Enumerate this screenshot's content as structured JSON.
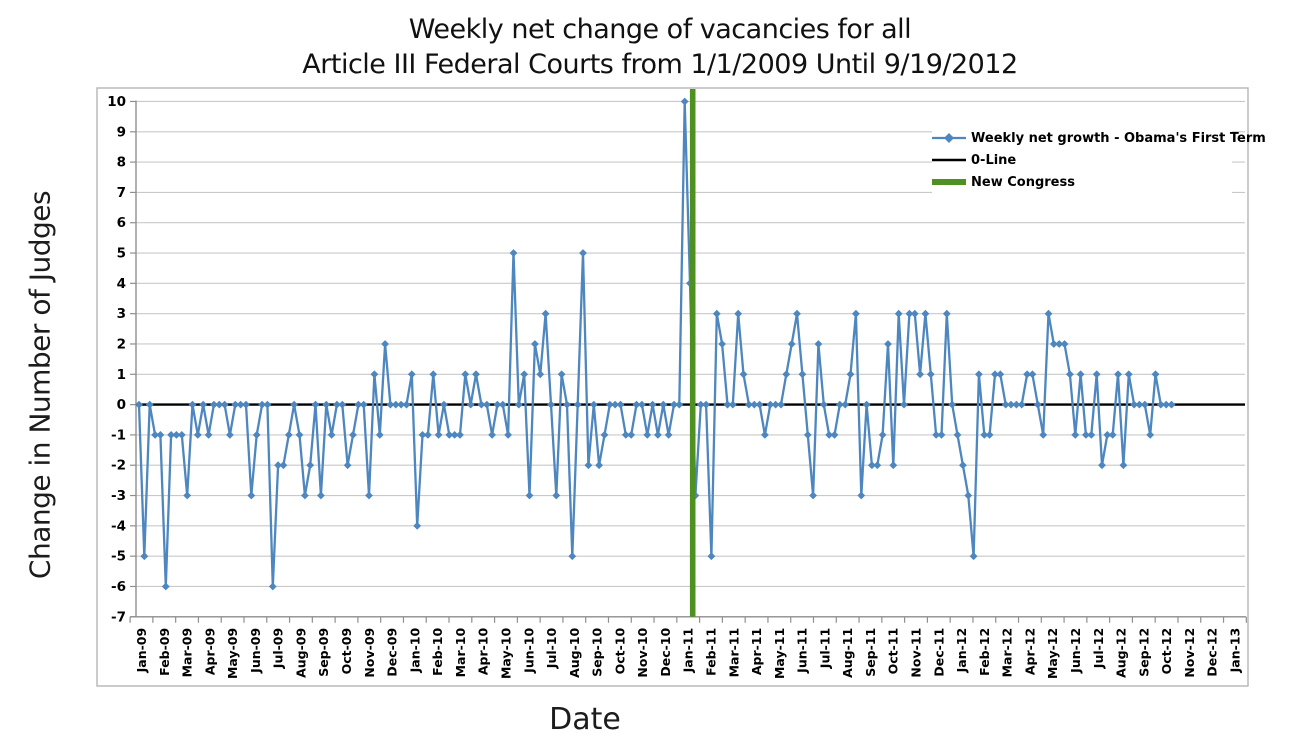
{
  "chart_data": {
    "type": "line",
    "title_line1": "Weekly net change of vacancies for all",
    "title_line2": "Article III Federal Courts from 1/1/2009 Until 9/19/2012",
    "xlabel": "Date",
    "ylabel": "Change in Number of Judges",
    "ylim": [
      -7,
      10
    ],
    "y_ticks": [
      10,
      9,
      8,
      7,
      6,
      5,
      4,
      3,
      2,
      1,
      0,
      -1,
      -2,
      -3,
      -4,
      -5,
      -6,
      -7
    ],
    "x_tick_labels": [
      "Jan-09",
      "Feb-09",
      "Mar-09",
      "Apr-09",
      "May-09",
      "Jun-09",
      "Jul-09",
      "Aug-09",
      "Sep-09",
      "Oct-09",
      "Nov-09",
      "Dec-09",
      "Jan-10",
      "Feb-10",
      "Mar-10",
      "Apr-10",
      "May-10",
      "Jun-10",
      "Jul-10",
      "Aug-10",
      "Sep-10",
      "Oct-10",
      "Nov-10",
      "Dec-10",
      "Jan-11",
      "Feb-11",
      "Mar-11",
      "Apr-11",
      "May-11",
      "Jun-11",
      "Jul-11",
      "Aug-11",
      "Sep-11",
      "Oct-11",
      "Nov-11",
      "Dec-11",
      "Jan-12",
      "Feb-12",
      "Mar-12",
      "Apr-12",
      "May-12",
      "Jun-12",
      "Jul-12",
      "Aug-12",
      "Sep-12",
      "Oct-12",
      "Nov-12",
      "Dec-12",
      "Jan-13"
    ],
    "grid": true,
    "legend_position": "top-right",
    "series": [
      {
        "name": "Weekly net growth - Obama's First Term",
        "color": "#4e86bf",
        "marker": "diamond",
        "x_unit": "week",
        "x_start": "Jan-09",
        "values": [
          0,
          -5,
          0,
          -1,
          -1,
          -6,
          -1,
          -1,
          -1,
          -3,
          0,
          -1,
          0,
          -1,
          0,
          0,
          0,
          -1,
          0,
          0,
          0,
          -3,
          -1,
          0,
          0,
          -6,
          -2,
          -2,
          -1,
          0,
          -1,
          -3,
          -2,
          0,
          -3,
          0,
          -1,
          0,
          0,
          -2,
          -1,
          0,
          0,
          -3,
          1,
          -1,
          2,
          0,
          0,
          0,
          0,
          1,
          -4,
          -1,
          -1,
          1,
          -1,
          0,
          -1,
          -1,
          -1,
          1,
          0,
          1,
          0,
          0,
          -1,
          0,
          0,
          -1,
          5,
          0,
          1,
          -3,
          2,
          1,
          3,
          0,
          -3,
          1,
          0,
          -5,
          0,
          5,
          -2,
          0,
          -2,
          -1,
          0,
          0,
          0,
          -1,
          -1,
          0,
          0,
          -1,
          0,
          -1,
          0,
          -1,
          0,
          0,
          10,
          4,
          -3,
          0,
          0,
          -5,
          3,
          2,
          0,
          0,
          3,
          1,
          0,
          0,
          0,
          -1,
          0,
          0,
          0,
          1,
          2,
          3,
          1,
          -1,
          -3,
          2,
          0,
          -1,
          -1,
          0,
          0,
          1,
          3,
          -3,
          0,
          -2,
          -2,
          -1,
          2,
          -2,
          3,
          0,
          3,
          3,
          1,
          3,
          1,
          -1,
          -1,
          3,
          0,
          -1,
          -2,
          -3,
          -5,
          1,
          -1,
          -1,
          1,
          1,
          0,
          0,
          0,
          0,
          1,
          1,
          0,
          -1,
          3,
          2,
          2,
          2,
          1,
          -1,
          1,
          -1,
          -1,
          1,
          -2,
          -1,
          -1,
          1,
          -2,
          1,
          0,
          0,
          0,
          -1,
          1,
          0,
          0,
          0
        ]
      }
    ],
    "zero_line": {
      "label": "0-Line",
      "color": "#000000"
    },
    "new_congress_line": {
      "label": "New Congress",
      "color": "#4f9120",
      "x_position": "Jan-11"
    },
    "legend": {
      "entries": [
        {
          "label": "Weekly net growth - Obama's First Term",
          "swatch": "line-with-diamond-marker",
          "color": "#4e86bf"
        },
        {
          "label": "0-Line",
          "swatch": "line",
          "color": "#000000"
        },
        {
          "label": "New Congress",
          "swatch": "thick-line",
          "color": "#4f9120"
        }
      ]
    }
  },
  "colors": {
    "series_blue": "#4e86bf",
    "zero_line_black": "#000000",
    "new_congress_green": "#4f9120",
    "gridline_gray": "#c9c9c9",
    "axis_gray": "#8f8f8f",
    "frame_gray": "#b5b5b5"
  }
}
